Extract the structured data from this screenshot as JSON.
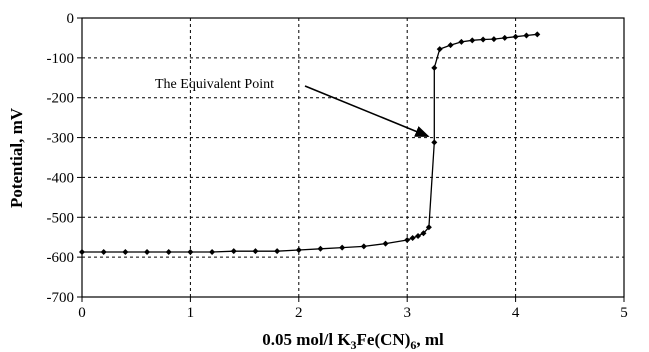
{
  "chart_data": {
    "type": "scatter",
    "xlabel": {
      "main": "0.05 mol/l K",
      "sub1": "3",
      "mid": "Fe(CN)",
      "sub2": "6",
      "tail": ", ml"
    },
    "ylabel": "Potential, mV",
    "xlim": [
      0,
      5
    ],
    "ylim": [
      -700,
      0
    ],
    "x_ticks": [
      0,
      1,
      2,
      3,
      4,
      5
    ],
    "y_ticks": [
      0,
      -100,
      -200,
      -300,
      -400,
      -500,
      -600,
      -700
    ],
    "grid": true,
    "series": [
      {
        "marker": "diamond",
        "color": "#000000",
        "points": [
          [
            0,
            -587
          ],
          [
            0.2,
            -587
          ],
          [
            0.4,
            -587
          ],
          [
            0.6,
            -587
          ],
          [
            0.8,
            -587
          ],
          [
            1.0,
            -587
          ],
          [
            1.2,
            -587
          ],
          [
            1.4,
            -585
          ],
          [
            1.6,
            -585
          ],
          [
            1.8,
            -585
          ],
          [
            2.0,
            -582
          ],
          [
            2.2,
            -579
          ],
          [
            2.4,
            -576
          ],
          [
            2.6,
            -573
          ],
          [
            2.8,
            -566
          ],
          [
            3.0,
            -557
          ],
          [
            3.05,
            -552
          ],
          [
            3.1,
            -547
          ],
          [
            3.15,
            -540
          ],
          [
            3.2,
            -525
          ],
          [
            3.25,
            -312
          ],
          [
            3.25,
            -125
          ],
          [
            3.3,
            -78
          ],
          [
            3.4,
            -68
          ],
          [
            3.5,
            -60
          ],
          [
            3.6,
            -56
          ],
          [
            3.7,
            -54
          ],
          [
            3.8,
            -53
          ],
          [
            3.9,
            -50
          ],
          [
            4.0,
            -47
          ],
          [
            4.1,
            -44
          ],
          [
            4.2,
            -41
          ]
        ]
      }
    ],
    "annotations": [
      {
        "text": "The Equivalent Point",
        "target": [
          3.25,
          -312
        ]
      }
    ]
  }
}
